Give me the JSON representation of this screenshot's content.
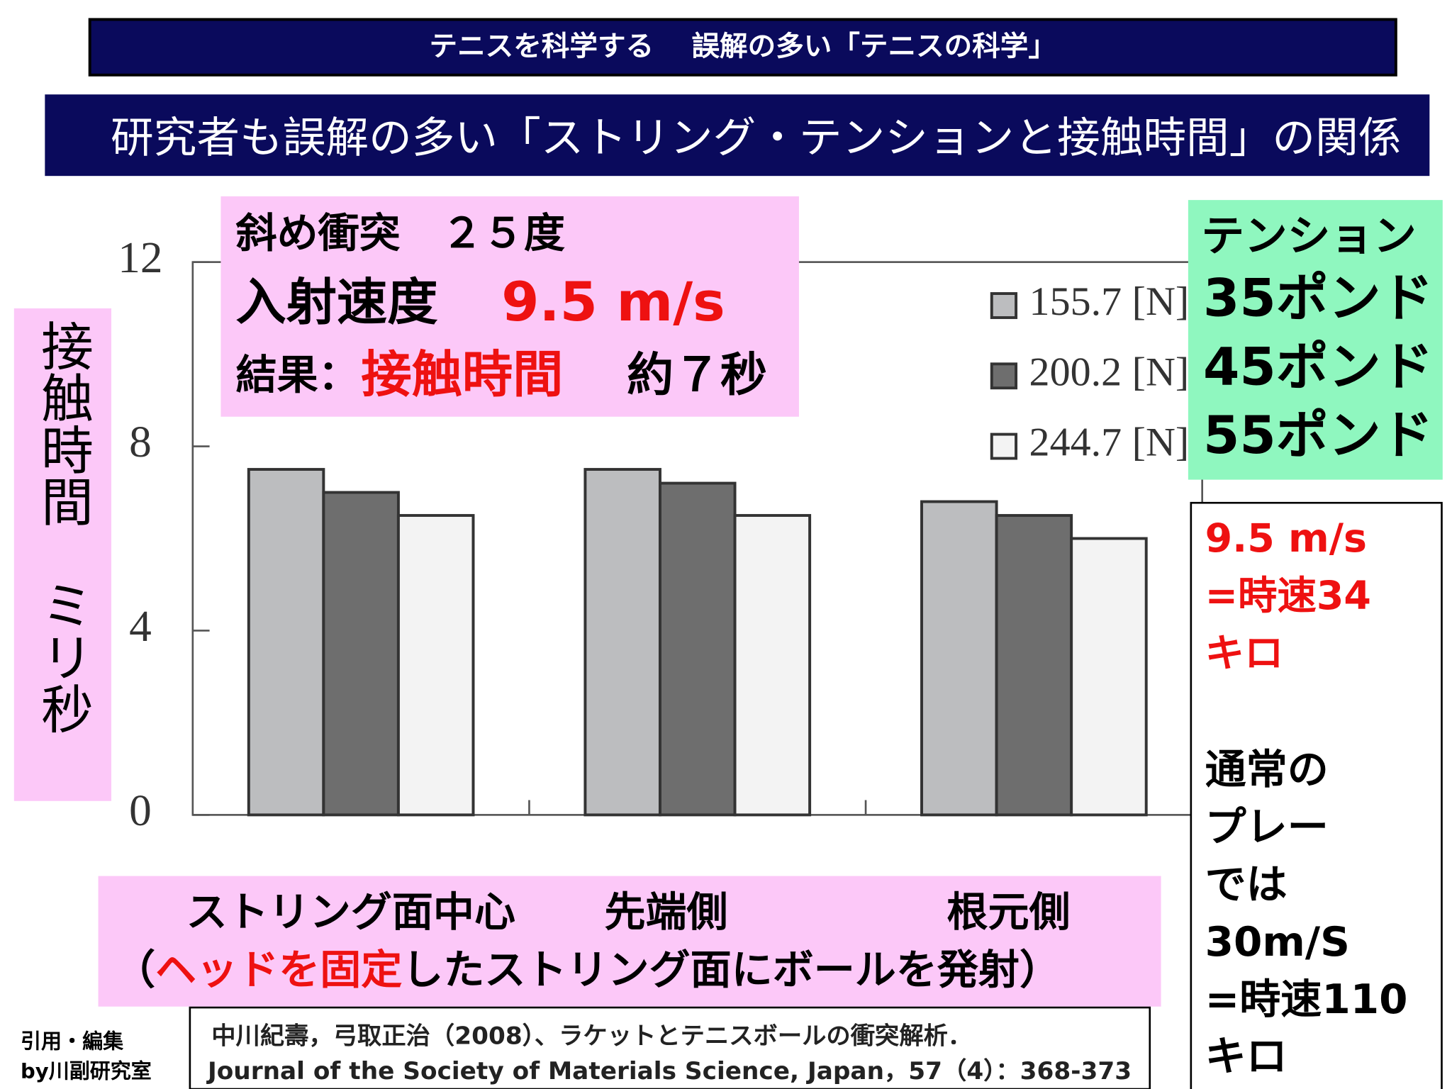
{
  "header": "テニスを科学する　 誤解の多い「テニスの科学」",
  "title": "研究者も誤解の多い「ストリング・テンションと接触時間」の関係",
  "conditions": {
    "line1": "斜め衝突　２５度",
    "speed_label": "入射速度",
    "speed_value": "9.5 m/s",
    "result_label": "結果：",
    "result_value": "接触時間",
    "result_note": "約７秒"
  },
  "tension": {
    "title": "テンション",
    "items": [
      "35ポンド",
      "45ポンド",
      "55ポンド"
    ]
  },
  "speed_note": {
    "red": [
      "9.5 m/s",
      "=時速34",
      "キロ"
    ],
    "black": [
      "通常の",
      "プレー",
      "では",
      "30m/S",
      "=時速110",
      "キロ"
    ]
  },
  "method": {
    "open": "（",
    "red": "ヘッドを固定",
    "rest": "したストリング面にボールを発射）"
  },
  "credit": [
    "引用・編集",
    "by川副研究室"
  ],
  "citation": [
    "中川紀壽，弓取正治（2008）、ラケットとテニスボールの衝突解析．",
    "Journal of the Society of Materials Science, Japan，57（4）：368-373"
  ],
  "chart_data": {
    "type": "bar",
    "y_label": "接触時間　ミリ秒",
    "categories": [
      "ストリング面中心",
      "先端側",
      "根元側"
    ],
    "series": [
      {
        "name": "155.7 [N]",
        "color": "#bcbdbf",
        "values": [
          7.5,
          7.5,
          6.8
        ]
      },
      {
        "name": "200.2 [N]",
        "color": "#6e6e6e",
        "values": [
          7.0,
          7.2,
          6.5
        ]
      },
      {
        "name": "244.7 [N]",
        "color": "#f3f3f3",
        "values": [
          6.5,
          6.5,
          6.0
        ]
      }
    ],
    "ylim": [
      0,
      12
    ],
    "yticks": [
      0,
      4,
      8,
      12
    ],
    "grid": false
  }
}
